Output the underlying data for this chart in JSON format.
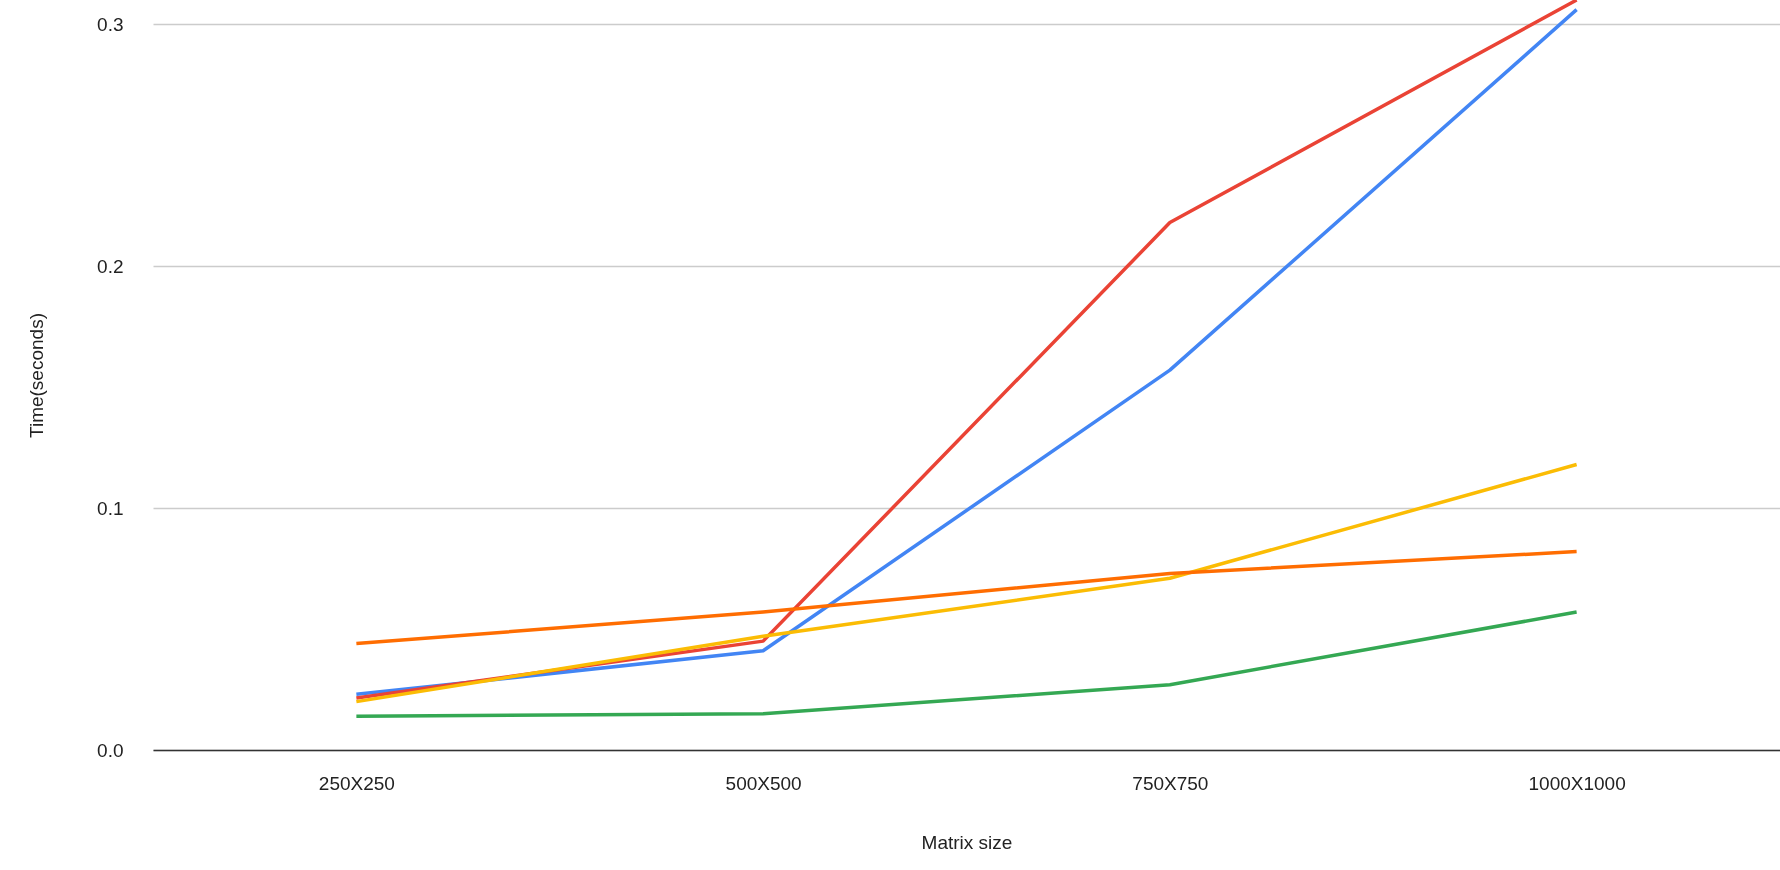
{
  "chart_data": {
    "type": "line",
    "xlabel": "Matrix size",
    "ylabel": "Time(seconds)",
    "categories": [
      "250X250",
      "500X500",
      "750X750",
      "1000X1000"
    ],
    "series": [
      {
        "color": "#4285f4",
        "values": [
          0.023,
          0.041,
          0.157,
          0.306
        ]
      },
      {
        "color": "#ea4335",
        "values": [
          0.0215,
          0.045,
          0.218,
          0.31
        ]
      },
      {
        "color": "#fbbc04",
        "values": [
          0.02,
          0.047,
          0.071,
          0.118
        ]
      },
      {
        "color": "#ff6d01",
        "values": [
          0.044,
          0.057,
          0.073,
          0.082
        ]
      },
      {
        "color": "#34a853",
        "values": [
          0.014,
          0.015,
          0.027,
          0.057
        ]
      }
    ],
    "ylim": [
      0,
      0.31
    ],
    "yticks": [
      {
        "value": 0,
        "label": "0.0"
      },
      0.1,
      0.2,
      0.3
    ],
    "grid": "y",
    "marker": "none",
    "line_style": "solid"
  }
}
